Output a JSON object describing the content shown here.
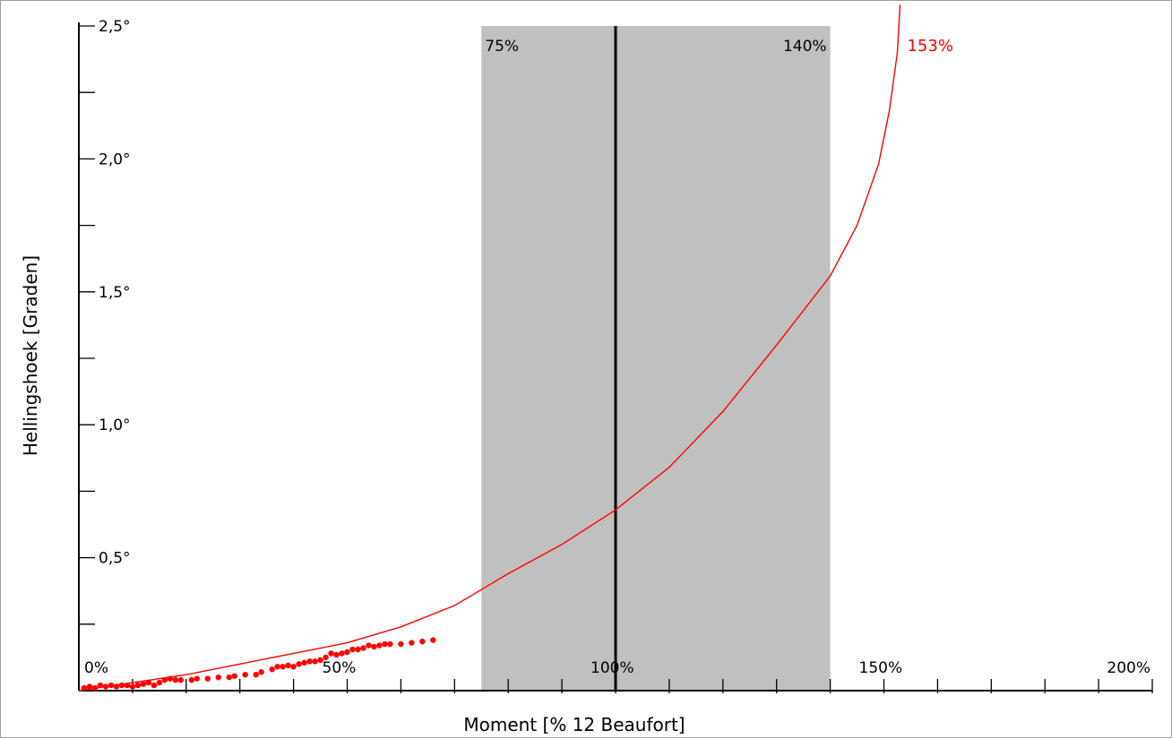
{
  "chart_data": {
    "type": "line",
    "xlabel": "Moment [% 12 Beaufort]",
    "ylabel": "Hellingshoek [Graden]",
    "xlim": [
      0,
      200
    ],
    "ylim": [
      0,
      2.5
    ],
    "x_tick_labels": [
      {
        "x": 0,
        "label": "0%"
      },
      {
        "x": 50,
        "label": "50%"
      },
      {
        "x": 100,
        "label": "100%"
      },
      {
        "x": 150,
        "label": "150%"
      },
      {
        "x": 200,
        "label": "200%"
      }
    ],
    "y_tick_labels": [
      {
        "y": 0.5,
        "label": "0,5°"
      },
      {
        "y": 1.0,
        "label": "1,0°"
      },
      {
        "y": 1.5,
        "label": "1,5°"
      },
      {
        "y": 2.0,
        "label": "2,0°"
      },
      {
        "y": 2.5,
        "label": "2,5°"
      }
    ],
    "shaded_region": {
      "x_start": 75,
      "x_end": 140,
      "color": "#c0c0c0",
      "start_label": "75%",
      "end_label": "140%"
    },
    "reference_line": {
      "x": 100
    },
    "curve": {
      "color": "#ff0000",
      "end_label": "153%",
      "points": [
        [
          0,
          0.0
        ],
        [
          10,
          0.03
        ],
        [
          20,
          0.06
        ],
        [
          30,
          0.1
        ],
        [
          40,
          0.14
        ],
        [
          50,
          0.18
        ],
        [
          60,
          0.24
        ],
        [
          70,
          0.32
        ],
        [
          75,
          0.38
        ],
        [
          80,
          0.44
        ],
        [
          90,
          0.55
        ],
        [
          100,
          0.68
        ],
        [
          110,
          0.84
        ],
        [
          120,
          1.05
        ],
        [
          130,
          1.3
        ],
        [
          140,
          1.56
        ],
        [
          145,
          1.75
        ],
        [
          149,
          1.98
        ],
        [
          151,
          2.18
        ],
        [
          152.5,
          2.4
        ],
        [
          153,
          2.58
        ]
      ]
    },
    "scatter": {
      "color": "#ff0000",
      "points": [
        [
          1,
          0.01
        ],
        [
          2,
          0.015
        ],
        [
          3,
          0.01
        ],
        [
          4,
          0.02
        ],
        [
          5,
          0.015
        ],
        [
          6,
          0.02
        ],
        [
          7,
          0.015
        ],
        [
          8,
          0.02
        ],
        [
          9,
          0.02
        ],
        [
          10,
          0.015
        ],
        [
          11,
          0.02
        ],
        [
          12,
          0.025
        ],
        [
          13,
          0.03
        ],
        [
          14,
          0.02
        ],
        [
          15,
          0.03
        ],
        [
          16,
          0.04
        ],
        [
          17,
          0.045
        ],
        [
          18,
          0.04
        ],
        [
          19,
          0.04
        ],
        [
          21,
          0.04
        ],
        [
          22,
          0.045
        ],
        [
          24,
          0.045
        ],
        [
          26,
          0.05
        ],
        [
          28,
          0.05
        ],
        [
          29,
          0.055
        ],
        [
          31,
          0.06
        ],
        [
          33,
          0.06
        ],
        [
          34,
          0.07
        ],
        [
          36,
          0.08
        ],
        [
          37,
          0.09
        ],
        [
          38,
          0.09
        ],
        [
          39,
          0.095
        ],
        [
          40,
          0.09
        ],
        [
          41,
          0.1
        ],
        [
          42,
          0.105
        ],
        [
          43,
          0.11
        ],
        [
          44,
          0.11
        ],
        [
          45,
          0.115
        ],
        [
          46,
          0.125
        ],
        [
          47,
          0.14
        ],
        [
          48,
          0.135
        ],
        [
          49,
          0.14
        ],
        [
          50,
          0.145
        ],
        [
          51,
          0.155
        ],
        [
          52,
          0.155
        ],
        [
          53,
          0.16
        ],
        [
          54,
          0.17
        ],
        [
          55,
          0.165
        ],
        [
          56,
          0.17
        ],
        [
          57,
          0.175
        ],
        [
          58,
          0.175
        ],
        [
          60,
          0.175
        ],
        [
          62,
          0.18
        ],
        [
          64,
          0.185
        ],
        [
          66,
          0.19
        ]
      ]
    }
  }
}
